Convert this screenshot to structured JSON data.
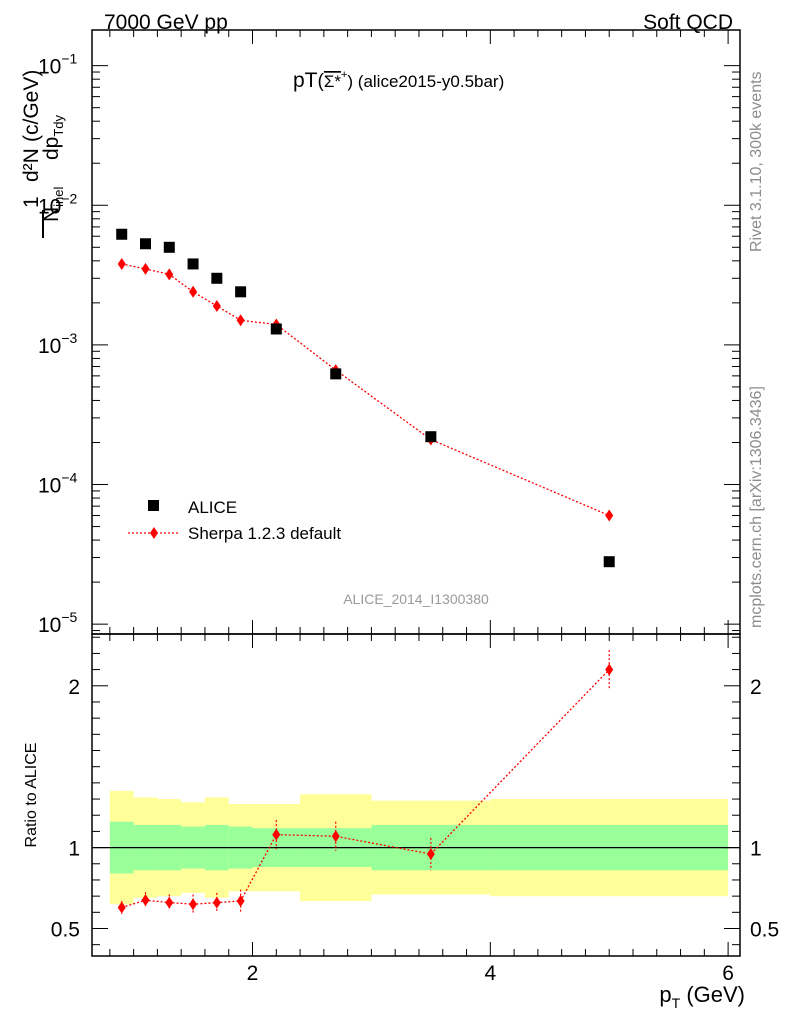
{
  "header": {
    "left": "7000 GeV pp",
    "right": "Soft QCD"
  },
  "side_labels": {
    "rivet": "Rivet 3.1.10,  300k events",
    "mcplots": "mcplots.cern.ch [arXiv:1306.3436]"
  },
  "chart_data": [
    {
      "type": "scatter",
      "title": "pT(Σ*+) (alice2015-y0.5bar)",
      "watermark": "ALICE_2014_I1300380",
      "ylabel": "1/N_inel d²N/dp_Tdy (c/GeV)",
      "yscale": "log",
      "xlim": [
        0.65,
        6.1
      ],
      "ylim": [
        8.5e-06,
        0.18
      ],
      "y_ticks": [
        {
          "value": 0.1,
          "label": "10",
          "exp": "−1"
        },
        {
          "value": 0.01,
          "label": "10",
          "exp": "−2"
        },
        {
          "value": 0.001,
          "label": "10",
          "exp": "−3"
        },
        {
          "value": 0.0001,
          "label": "10",
          "exp": "−4"
        },
        {
          "value": 1e-05,
          "label": "10",
          "exp": "−5"
        }
      ],
      "legend_position": "bottom-left",
      "series": [
        {
          "name": "ALICE",
          "color": "#000000",
          "marker": "square",
          "x": [
            0.9,
            1.1,
            1.3,
            1.5,
            1.7,
            1.9,
            2.2,
            2.7,
            3.5,
            5.0
          ],
          "y": [
            0.0062,
            0.0053,
            0.005,
            0.0038,
            0.003,
            0.0024,
            0.0013,
            0.00062,
            0.00022,
            2.8e-05
          ]
        },
        {
          "name": "Sherpa 1.2.3 default",
          "color": "#ff0000",
          "marker": "diamond",
          "line": "dotted",
          "x": [
            0.9,
            1.1,
            1.3,
            1.5,
            1.7,
            1.9,
            2.2,
            2.7,
            3.5,
            5.0
          ],
          "y": [
            0.0038,
            0.0035,
            0.0032,
            0.0024,
            0.0019,
            0.0015,
            0.0014,
            0.00066,
            0.00021,
            6e-05
          ]
        }
      ]
    },
    {
      "type": "scatter",
      "xlabel": "p_T (GeV)",
      "ylabel": "Ratio to ALICE",
      "xlim": [
        0.65,
        6.1
      ],
      "ylim": [
        0.33,
        2.32
      ],
      "x_ticks": [
        {
          "value": 2,
          "label": "2"
        },
        {
          "value": 4,
          "label": "4"
        },
        {
          "value": 6,
          "label": "6"
        }
      ],
      "y_ticks": [
        {
          "value": 0.5,
          "label": "0.5"
        },
        {
          "value": 1,
          "label": "1"
        },
        {
          "value": 2,
          "label": "2"
        }
      ],
      "reference_line": 1,
      "bands": {
        "bin_edges": [
          0.8,
          1.0,
          1.2,
          1.4,
          1.6,
          1.8,
          2.0,
          2.4,
          3.0,
          4.0,
          6.0
        ],
        "inner": {
          "color": "#99ff99",
          "low": [
            0.84,
            0.86,
            0.86,
            0.87,
            0.86,
            0.87,
            0.88,
            0.88,
            0.86,
            0.86
          ],
          "high": [
            1.16,
            1.14,
            1.14,
            1.13,
            1.14,
            1.13,
            1.12,
            1.12,
            1.14,
            1.14
          ]
        },
        "outer": {
          "color": "#ffff99",
          "low": [
            0.65,
            0.69,
            0.7,
            0.72,
            0.69,
            0.73,
            0.73,
            0.67,
            0.71,
            0.7
          ],
          "high": [
            1.35,
            1.31,
            1.3,
            1.28,
            1.31,
            1.27,
            1.27,
            1.33,
            1.29,
            1.3
          ]
        }
      },
      "series": [
        {
          "name": "Sherpa 1.2.3 default",
          "color": "#ff0000",
          "marker": "diamond",
          "x": [
            0.9,
            1.1,
            1.3,
            1.5,
            1.7,
            1.9,
            2.2,
            2.7,
            3.5,
            5.0
          ],
          "y": [
            0.63,
            0.675,
            0.66,
            0.65,
            0.66,
            0.67,
            1.08,
            1.07,
            0.96,
            2.1
          ],
          "err": [
            0.04,
            0.05,
            0.05,
            0.06,
            0.06,
            0.07,
            0.09,
            0.09,
            0.1,
            0.12
          ]
        }
      ]
    }
  ]
}
